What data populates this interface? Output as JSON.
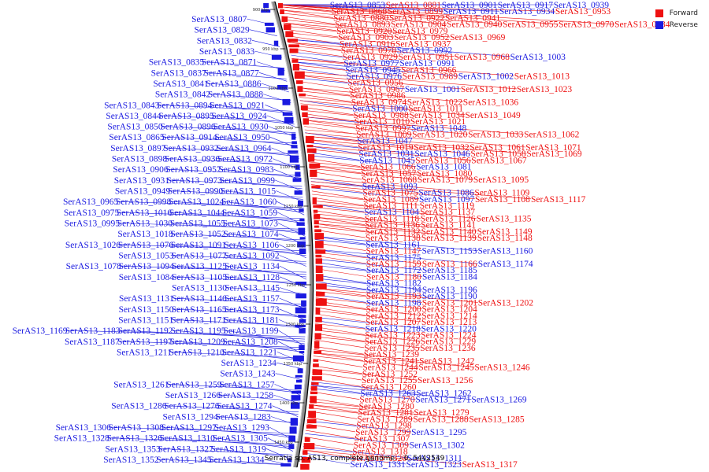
{
  "colors": {
    "forward": "#ee1111",
    "reverse": "#1a1ae0",
    "backbone": "#8a8a8a"
  },
  "legend": [
    {
      "label": "Forward",
      "strand": "forward"
    },
    {
      "label": "Reverse",
      "strand": "reverse"
    }
  ],
  "caption": "Serratia sp. AS13, complete genome. - 0..5442549",
  "ticks": [
    "900 kbp",
    "950 kbp",
    "1000 kbp",
    "1050 kbp",
    "1100 kbp",
    "1150 kbp",
    "1200 kbp",
    "1250 kbp",
    "1300 kbp",
    "1350 kbp",
    "1400 kbp",
    "1450 kbp"
  ],
  "left_labels": [
    [
      "SerAS13_0807"
    ],
    [
      "SerAS13_0829"
    ],
    [
      "SerAS13_0832"
    ],
    [
      "SerAS13_0833"
    ],
    [
      "SerAS13_0835",
      "SerAS13_0871"
    ],
    [
      "SerAS13_0837",
      "SerAS13_0877"
    ],
    [
      "SerAS13_0841",
      "SerAS13_0886"
    ],
    [
      "SerAS13_0842",
      "SerAS13_0888"
    ],
    [
      "SerAS13_0843",
      "SerAS13_0894",
      "SerAS13_0921"
    ],
    [
      "SerAS13_0844",
      "SerAS13_0895",
      "SerAS13_0924"
    ],
    [
      "SerAS13_0850",
      "SerAS13_0896",
      "SerAS13_0930"
    ],
    [
      "SerAS13_0865",
      "SerAS13_0914",
      "SerAS13_0950"
    ],
    [
      "SerAS13_0897",
      "SerAS13_0932",
      "SerAS13_0964"
    ],
    [
      "SerAS13_0898",
      "SerAS13_0936",
      "SerAS13_0972"
    ],
    [
      "SerAS13_0906",
      "SerAS13_0957",
      "SerAS13_0983"
    ],
    [
      "SerAS13_0931",
      "SerAS13_0973",
      "SerAS13_0999"
    ],
    [
      "SerAS13_0949",
      "SerAS13_0990",
      "SerAS13_1015"
    ],
    [
      "SerAS13_0965",
      "SerAS13_0998",
      "SerAS13_1024",
      "SerAS13_1060"
    ],
    [
      "SerAS13_0975",
      "SerAS13_1016",
      "SerAS13_1044",
      "SerAS13_1059"
    ],
    [
      "SerAS13_0995",
      "SerAS13_1030",
      "SerAS13_1055",
      "SerAS13_1073"
    ],
    [
      "SerAS13_1018",
      "SerAS13_1052",
      "SerAS13_1074"
    ],
    [
      "SerAS13_1026",
      "SerAS13_1076",
      "SerAS13_1091",
      "SerAS13_1106"
    ],
    [
      "SerAS13_1053",
      "SerAS13_1077",
      "SerAS13_1092"
    ],
    [
      "SerAS13_1078",
      "SerAS13_1094",
      "SerAS13_1125",
      "SerAS13_1134"
    ],
    [
      "SerAS13_1084",
      "SerAS13_1105",
      "SerAS13_1128"
    ],
    [
      "SerAS13_1130",
      "SerAS13_1145"
    ],
    [
      "SerAS13_1131",
      "SerAS13_1146",
      "SerAS13_1157"
    ],
    [
      "SerAS13_1150",
      "SerAS13_1165",
      "SerAS13_1173"
    ],
    [
      "SerAS13_1151",
      "SerAS13_1171",
      "SerAS13_1181"
    ],
    [
      "SerAS13_1169",
      "SerAS13_1183",
      "SerAS13_1192",
      "SerAS13_1195",
      "SerAS13_1199"
    ],
    [
      "SerAS13_1187",
      "SerAS13_1197",
      "SerAS13_1209",
      "SerAS13_1208"
    ],
    [
      "SerAS13_1211",
      "SerAS13_1210",
      "SerAS13_1221"
    ],
    [
      "SerAS13_1234"
    ],
    [
      "SerAS13_1243"
    ],
    [
      "SerAS13_1261",
      "SerAS13_1259",
      "SerAS13_1257"
    ],
    [
      "SerAS13_1266",
      "SerAS13_1258"
    ],
    [
      "SerAS13_1286",
      "SerAS13_1276",
      "SerAS13_1274"
    ],
    [
      "SerAS13_1294",
      "SerAS13_1283"
    ],
    [
      "SerAS13_1306",
      "SerAS13_1308",
      "SerAS13_1297",
      "SerAS13_1293"
    ],
    [
      "SerAS13_1328",
      "SerAS13_1326",
      "SerAS13_1310",
      "SerAS13_1305"
    ],
    [
      "SerAS13_1353",
      "SerAS13_1327",
      "SerAS13_1319"
    ],
    [
      "SerAS13_1352",
      "SerAS13_1345",
      "SerAS13_1334"
    ]
  ],
  "right_labels": [
    [
      [
        "SerAS13_0853",
        "r"
      ],
      [
        "SerAS13_0881",
        "f"
      ],
      [
        "SerAS13_0901",
        "r"
      ],
      [
        "SerAS13_0917",
        "r"
      ],
      [
        "SerAS13_0939",
        "r"
      ]
    ],
    [
      [
        "SerAS13_0868",
        "f"
      ],
      [
        "SerAS13_0899",
        "f"
      ],
      [
        "SerAS13_0911",
        "r"
      ],
      [
        "SerAS13_0934",
        "r"
      ],
      [
        "SerAS13_0953",
        "f"
      ]
    ],
    [
      [
        "SerAS13_0880",
        "f"
      ],
      [
        "SerAS13_0922",
        "f"
      ],
      [
        "SerAS13_0941",
        "f"
      ]
    ],
    [
      [
        "SerAS13_0893",
        "f"
      ],
      [
        "SerAS13_0904",
        "f"
      ],
      [
        "SerAS13_0940",
        "f"
      ],
      [
        "SerAS13_0955",
        "f"
      ],
      [
        "SerAS13_0970",
        "f"
      ],
      [
        "SerAS13_0984",
        "f"
      ]
    ],
    [
      [
        "SerAS13_0920",
        "f"
      ],
      [
        "SerAS13_0979",
        "f"
      ]
    ],
    [
      [
        "SerAS13_0903",
        "f"
      ],
      [
        "SerAS13_0952",
        "f"
      ],
      [
        "SerAS13_0969",
        "f"
      ]
    ],
    [
      [
        "SerAS13_0916",
        "f"
      ],
      [
        "SerAS13_0937",
        "f"
      ]
    ],
    [
      [
        "SerAS13_0978",
        "f"
      ],
      [
        "SerAS13_0992",
        "r"
      ]
    ],
    [
      [
        "SerAS13_0929",
        "f"
      ],
      [
        "SerAS13_0951",
        "f"
      ],
      [
        "SerAS13_0968",
        "f"
      ],
      [
        "SerAS13_1003",
        "r"
      ]
    ],
    [
      [
        "SerAS13_0977",
        "r"
      ],
      [
        "SerAS13_0991",
        "r"
      ]
    ],
    [
      [
        "SerAS13_0945",
        "r"
      ],
      [
        "SerAS13_0966",
        "f"
      ]
    ],
    [
      [
        "SerAS13_0976",
        "r"
      ],
      [
        "SerAS13_0989",
        "f"
      ],
      [
        "SerAS13_1002",
        "r"
      ],
      [
        "SerAS13_1013",
        "f"
      ]
    ],
    [
      [
        "SerAS13_0956",
        "f"
      ]
    ],
    [
      [
        "SerAS13_0967",
        "f"
      ],
      [
        "SerAS13_1001",
        "r"
      ],
      [
        "SerAS13_1012",
        "f"
      ],
      [
        "SerAS13_1023",
        "f"
      ]
    ],
    [
      [
        "SerAS13_0986",
        "f"
      ]
    ],
    [
      [
        "SerAS13_0974",
        "f"
      ],
      [
        "SerAS13_1022",
        "f"
      ],
      [
        "SerAS13_1036",
        "f"
      ]
    ],
    [
      [
        "SerAS13_1000",
        "r"
      ],
      [
        "SerAS13_1011",
        "f"
      ]
    ],
    [
      [
        "SerAS13_0988",
        "f"
      ],
      [
        "SerAS13_1034",
        "f"
      ],
      [
        "SerAS13_1049",
        "f"
      ]
    ],
    [
      [
        "SerAS13_1010",
        "f"
      ],
      [
        "SerAS13_1021",
        "f"
      ]
    ],
    [
      [
        "SerAS13_0997",
        "f"
      ],
      [
        "SerAS13_1048",
        "r"
      ]
    ],
    [
      [
        "SerAS13_1009",
        "f"
      ],
      [
        "SerAS13_1020",
        "f"
      ],
      [
        "SerAS13_1033",
        "f"
      ],
      [
        "SerAS13_1062",
        "f"
      ]
    ],
    [
      [
        "SerAS13_1047",
        "r"
      ]
    ],
    [
      [
        "SerAS13_1019",
        "f"
      ],
      [
        "SerAS13_1032",
        "f"
      ],
      [
        "SerAS13_1061",
        "f"
      ],
      [
        "SerAS13_1071",
        "f"
      ]
    ],
    [
      [
        "SerAS13_1031",
        "r"
      ],
      [
        "SerAS13_1046",
        "r"
      ],
      [
        "SerAS13_1058",
        "f"
      ],
      [
        "SerAS13_1069",
        "f"
      ]
    ],
    [
      [
        "SerAS13_1045",
        "r"
      ],
      [
        "SerAS13_1056",
        "f"
      ],
      [
        "SerAS13_1067",
        "f"
      ]
    ],
    [
      [
        "SerAS13_1066",
        "f"
      ],
      [
        "SerAS13_1081",
        "r"
      ]
    ],
    [
      [
        "SerAS13_1057",
        "f"
      ],
      [
        "SerAS13_1080",
        "f"
      ]
    ],
    [
      [
        "SerAS13_1068",
        "f"
      ],
      [
        "SerAS13_1079",
        "f"
      ],
      [
        "SerAS13_1095",
        "f"
      ]
    ],
    [
      [
        "SerAS13_1093",
        "r"
      ]
    ],
    [
      [
        "SerAS13_1075",
        "f"
      ],
      [
        "SerAS13_1086",
        "r"
      ],
      [
        "SerAS13_1109",
        "f"
      ]
    ],
    [
      [
        "SerAS13_1089",
        "f"
      ],
      [
        "SerAS13_1097",
        "r"
      ],
      [
        "SerAS13_1108",
        "f"
      ],
      [
        "SerAS13_1117",
        "f"
      ]
    ],
    [
      [
        "SerAS13_1111",
        "f"
      ],
      [
        "SerAS13_1119",
        "f"
      ]
    ],
    [
      [
        "SerAS13_1104",
        "r"
      ],
      [
        "SerAS13_1137",
        "f"
      ]
    ],
    [
      [
        "SerAS13_1118",
        "f"
      ],
      [
        "SerAS13_1126",
        "f"
      ],
      [
        "SerAS13_1135",
        "f"
      ]
    ],
    [
      [
        "SerAS13_1136",
        "f"
      ],
      [
        "SerAS13_1141",
        "f"
      ]
    ],
    [
      [
        "SerAS13_1132",
        "f"
      ],
      [
        "SerAS13_1140",
        "f"
      ],
      [
        "SerAS13_1149",
        "f"
      ]
    ],
    [
      [
        "SerAS13_1138",
        "f"
      ],
      [
        "SerAS13_1139",
        "f"
      ],
      [
        "SerAS13_1148",
        "f"
      ]
    ],
    [
      [
        "SerAS13_1161",
        "r"
      ]
    ],
    [
      [
        "SerAS13_1147",
        "f"
      ],
      [
        "SerAS13_1153",
        "r"
      ],
      [
        "SerAS13_1160",
        "r"
      ]
    ],
    [
      [
        "SerAS13_1175",
        "r"
      ]
    ],
    [
      [
        "SerAS13_1159",
        "f"
      ],
      [
        "SerAS13_1166",
        "f"
      ],
      [
        "SerAS13_1174",
        "r"
      ]
    ],
    [
      [
        "SerAS13_1172",
        "r"
      ],
      [
        "SerAS13_1185",
        "r"
      ]
    ],
    [
      [
        "SerAS13_1180",
        "f"
      ],
      [
        "SerAS13_1184",
        "r"
      ]
    ],
    [
      [
        "SerAS13_1182",
        "r"
      ]
    ],
    [
      [
        "SerAS13_1194",
        "r"
      ],
      [
        "SerAS13_1196",
        "r"
      ]
    ],
    [
      [
        "SerAS13_1193",
        "f"
      ],
      [
        "SerAS13_1190",
        "r"
      ]
    ],
    [
      [
        "SerAS13_1198",
        "r"
      ],
      [
        "SerAS13_1201",
        "f"
      ],
      [
        "SerAS13_1202",
        "f"
      ]
    ],
    [
      [
        "SerAS13_1200",
        "f"
      ],
      [
        "SerAS13_1204",
        "f"
      ]
    ],
    [
      [
        "SerAS13_1212",
        "f"
      ],
      [
        "SerAS13_1214",
        "f"
      ]
    ],
    [
      [
        "SerAS13_1207",
        "f"
      ],
      [
        "SerAS13_1213",
        "f"
      ]
    ],
    [
      [
        "SerAS13_1218",
        "r"
      ],
      [
        "SerAS13_1220",
        "r"
      ]
    ],
    [
      [
        "SerAS13_1223",
        "f"
      ],
      [
        "SerAS13_1224",
        "f"
      ]
    ],
    [
      [
        "SerAS13_1226",
        "f"
      ],
      [
        "SerAS13_1229",
        "f"
      ]
    ],
    [
      [
        "SerAS13_1235",
        "f"
      ],
      [
        "SerAS13_1236",
        "f"
      ]
    ],
    [
      [
        "SerAS13_1239",
        "f"
      ]
    ],
    [
      [
        "SerAS13_1241",
        "f"
      ],
      [
        "SerAS13_1242",
        "f"
      ]
    ],
    [
      [
        "SerAS13_1244",
        "f"
      ],
      [
        "SerAS13_1245",
        "f"
      ],
      [
        "SerAS13_1246",
        "f"
      ]
    ],
    [
      [
        "SerAS13_1252",
        "f"
      ]
    ],
    [
      [
        "SerAS13_1255",
        "f"
      ],
      [
        "SerAS13_1256",
        "f"
      ]
    ],
    [
      [
        "SerAS13_1260",
        "f"
      ]
    ],
    [
      [
        "SerAS13_1263",
        "r"
      ],
      [
        "SerAS13_1262",
        "r"
      ]
    ],
    [
      [
        "SerAS13_1270",
        "f"
      ],
      [
        "SerAS13_1271",
        "r"
      ],
      [
        "SerAS13_1269",
        "r"
      ]
    ],
    [
      [
        "SerAS13_1280",
        "f"
      ]
    ],
    [
      [
        "SerAS13_1281",
        "f"
      ],
      [
        "SerAS13_1279",
        "f"
      ]
    ],
    [
      [
        "SerAS13_1289",
        "f"
      ],
      [
        "SerAS13_1288",
        "f"
      ],
      [
        "SerAS13_1285",
        "f"
      ]
    ],
    [
      [
        "SerAS13_1298",
        "f"
      ]
    ],
    [
      [
        "SerAS13_1299",
        "f"
      ],
      [
        "SerAS13_1295",
        "r"
      ]
    ],
    [
      [
        "SerAS13_1307",
        "f"
      ]
    ],
    [
      [
        "SerAS13_1309",
        "f"
      ],
      [
        "SerAS13_1302",
        "r"
      ]
    ],
    [
      [
        "SerAS13_1318",
        "f"
      ]
    ],
    [
      [
        "SerAS13_1320",
        "f"
      ],
      [
        "SerAS13_1311",
        "r"
      ]
    ],
    [
      [
        "SerAS13_1331",
        "r"
      ],
      [
        "SerAS13_1323",
        "r"
      ],
      [
        "SerAS13_1317",
        "f"
      ]
    ]
  ]
}
